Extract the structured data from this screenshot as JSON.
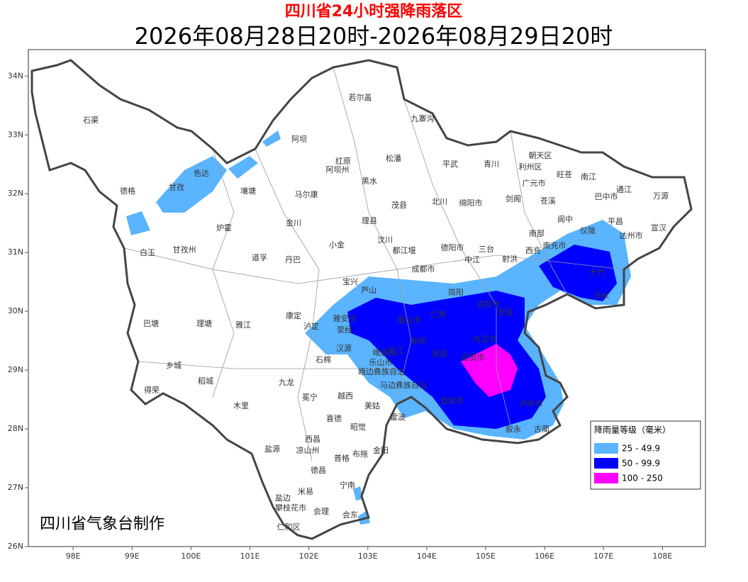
{
  "header": {
    "title": "四川省24小时强降雨落区",
    "subtitle": "2026年08月28日20时-2026年08月29日20时"
  },
  "axes": {
    "xlim": [
      97.24,
      108.73
    ],
    "ylim": [
      26,
      34.45
    ],
    "xticks": [
      {
        "value": 98,
        "label": "98E"
      },
      {
        "value": 99,
        "label": "99E"
      },
      {
        "value": 100,
        "label": "100E"
      },
      {
        "value": 101,
        "label": "101E"
      },
      {
        "value": 102,
        "label": "102E"
      },
      {
        "value": 103,
        "label": "103E"
      },
      {
        "value": 104,
        "label": "104E"
      },
      {
        "value": 105,
        "label": "105E"
      },
      {
        "value": 106,
        "label": "106E"
      },
      {
        "value": 107,
        "label": "107E"
      },
      {
        "value": 108,
        "label": "108E"
      }
    ],
    "yticks": [
      {
        "value": 26,
        "label": "26N"
      },
      {
        "value": 27,
        "label": "27N"
      },
      {
        "value": 28,
        "label": "28N"
      },
      {
        "value": 29,
        "label": "29N"
      },
      {
        "value": 30,
        "label": "30N"
      },
      {
        "value": 31,
        "label": "31N"
      },
      {
        "value": 32,
        "label": "32N"
      },
      {
        "value": 33,
        "label": "33N"
      },
      {
        "value": 34,
        "label": "34N"
      }
    ]
  },
  "legend": {
    "title": "降雨量等级（毫米）",
    "items": [
      {
        "label": "25 - 49.9",
        "color": "#5ab4ff"
      },
      {
        "label": "50 - 99.9",
        "color": "#0000ff"
      },
      {
        "label": "100 - 250",
        "color": "#ff00ff"
      }
    ]
  },
  "credit": "四川省气象台制作",
  "places": [
    "石渠",
    "若尔盖",
    "九寨沟",
    "阿坝",
    "红原",
    "松潘",
    "平武",
    "青川",
    "朝天区",
    "利州区",
    "旺苍",
    "南江",
    "通江",
    "万源",
    "阿坝州",
    "色达",
    "德格",
    "甘孜",
    "壤塘",
    "马尔康",
    "黑水",
    "北川",
    "绵阳市",
    "剑阁",
    "苍溪",
    "巴中市",
    "广元市",
    "茂县",
    "理县",
    "金川",
    "炉霍",
    "白玉",
    "甘孜州",
    "道孚",
    "丹巴",
    "小金",
    "汶川",
    "德阳市",
    "三台",
    "南部",
    "南充市",
    "平昌",
    "达州市",
    "宣汉",
    "都江堰",
    "成都市",
    "中江",
    "射洪",
    "资阳市",
    "宝兴",
    "芦山",
    "雅安市",
    "荥经",
    "眉山市",
    "乐山市",
    "泸定",
    "康定",
    "巴塘",
    "理塘",
    "雅江",
    "稻城",
    "乡城",
    "得荣",
    "九龙",
    "汉源",
    "石棉",
    "冕宁",
    "越西",
    "美姑",
    "木里",
    "喜德",
    "昭觉",
    "雷波",
    "盐源",
    "西昌",
    "凉山州",
    "布拖",
    "金阳",
    "普格",
    "德昌",
    "宁南",
    "米易",
    "盐边",
    "攀枝花市",
    "会理",
    "会东",
    "仁和区",
    "自贡市",
    "内江市",
    "宜宾市",
    "泸州市",
    "古蔺",
    "叙永",
    "安岳",
    "仁寿",
    "简阳",
    "荣县",
    "井研",
    "夹江",
    "峨眉山",
    "马边彝族自治",
    "峨边彝族自治",
    "大竹",
    "邻水",
    "仪陇",
    "阆中",
    "西充"
  ]
}
